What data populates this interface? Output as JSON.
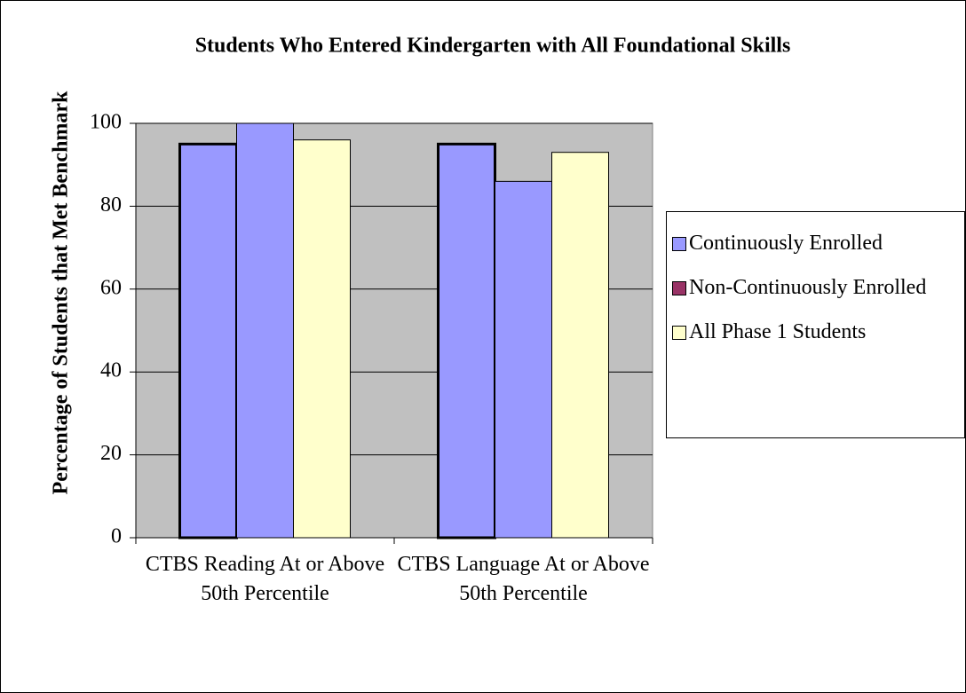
{
  "chart_data": {
    "type": "bar",
    "title": "Students Who Entered Kindergarten with All Foundational Skills",
    "y_label": "Percentage of Students that Met Benchmark",
    "categories": [
      "CTBS Reading At or Above 50th Percentile",
      "CTBS Language At or Above 50th Percentile"
    ],
    "series": [
      {
        "name": "Continuously Enrolled",
        "color": "#9999ff",
        "values": [
          95,
          95
        ]
      },
      {
        "name": "Non-Continuously Enrolled",
        "color": "#993366",
        "bar_color": "#9999ff",
        "values": [
          100,
          86
        ]
      },
      {
        "name": "All Phase 1 Students",
        "color": "#ffffcc",
        "values": [
          96,
          93
        ]
      }
    ],
    "ylim": [
      0,
      100
    ],
    "yticks": [
      0,
      20,
      40,
      60,
      80,
      100
    ],
    "grid": true,
    "legend": "right",
    "plot_background": "#c0c0c0"
  }
}
